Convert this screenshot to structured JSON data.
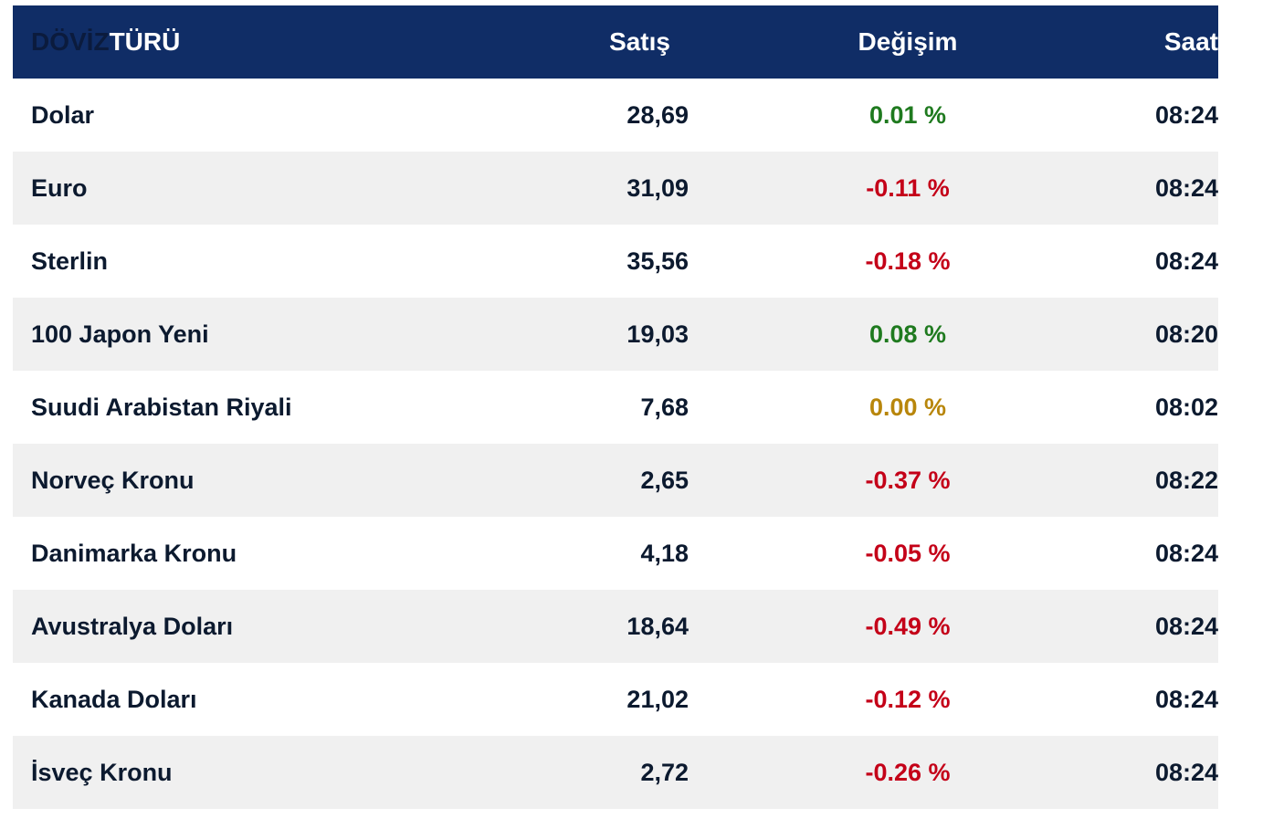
{
  "header": {
    "col1_part1": "DÖVİZ",
    "col1_part2": "TÜRÜ",
    "col2": "Satış",
    "col3": "Değişim",
    "col4": "Saat"
  },
  "rows": [
    {
      "name": "Dolar",
      "sale": "28,69",
      "change": "0.01 %",
      "trend": "up",
      "time": "08:24"
    },
    {
      "name": "Euro",
      "sale": "31,09",
      "change": "-0.11 %",
      "trend": "down",
      "time": "08:24"
    },
    {
      "name": "Sterlin",
      "sale": "35,56",
      "change": "-0.18 %",
      "trend": "down",
      "time": "08:24"
    },
    {
      "name": "100 Japon Yeni",
      "sale": "19,03",
      "change": "0.08 %",
      "trend": "up",
      "time": "08:20"
    },
    {
      "name": "Suudi Arabistan Riyali",
      "sale": "7,68",
      "change": "0.00 %",
      "trend": "flat",
      "time": "08:02"
    },
    {
      "name": "Norveç Kronu",
      "sale": "2,65",
      "change": "-0.37 %",
      "trend": "down",
      "time": "08:22"
    },
    {
      "name": "Danimarka Kronu",
      "sale": "4,18",
      "change": "-0.05 %",
      "trend": "down",
      "time": "08:24"
    },
    {
      "name": "Avustralya Doları",
      "sale": "18,64",
      "change": "-0.49 %",
      "trend": "down",
      "time": "08:24"
    },
    {
      "name": "Kanada Doları",
      "sale": "21,02",
      "change": "-0.12 %",
      "trend": "down",
      "time": "08:24"
    },
    {
      "name": "İsveç Kronu",
      "sale": "2,72",
      "change": "-0.26 %",
      "trend": "down",
      "time": "08:24"
    }
  ],
  "colors": {
    "header_bg": "#102d66",
    "up": "#1f7a1f",
    "down": "#c40018",
    "flat": "#b8860b"
  }
}
